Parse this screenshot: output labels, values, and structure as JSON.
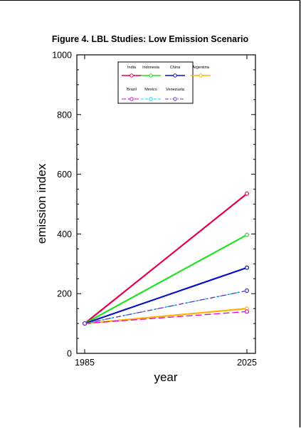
{
  "chart_data": {
    "type": "line",
    "title": "Figure 4. LBL Studies: Low Emission Scenario",
    "xlabel": "year",
    "ylabel": "emission index",
    "x": [
      1985,
      2025
    ],
    "xticks": [
      "1985",
      "2025"
    ],
    "ylim": [
      0,
      1000
    ],
    "yticks": [
      "0",
      "200",
      "400",
      "600",
      "800",
      "1000"
    ],
    "grid": false,
    "legend_position": "top-center",
    "series": [
      {
        "name": "India",
        "values": [
          100,
          535
        ],
        "color": "#e8004a",
        "dash": "solid"
      },
      {
        "name": "Indonesia",
        "values": [
          100,
          397
        ],
        "color": "#22e022",
        "dash": "solid"
      },
      {
        "name": "China",
        "values": [
          100,
          287
        ],
        "color": "#0a10c8",
        "dash": "solid"
      },
      {
        "name": "Argentina",
        "values": [
          100,
          150
        ],
        "color": "#ffb000",
        "dash": "solid"
      },
      {
        "name": "Brazil",
        "values": [
          100,
          140
        ],
        "color": "#e000e0",
        "dash": "longdash"
      },
      {
        "name": "Mexico",
        "values": [
          100,
          210
        ],
        "color": "#00d8f0",
        "dash": "dash"
      },
      {
        "name": "Venezuela",
        "values": [
          100,
          210
        ],
        "color": "#7030c0",
        "dash": "dashdot"
      }
    ]
  }
}
